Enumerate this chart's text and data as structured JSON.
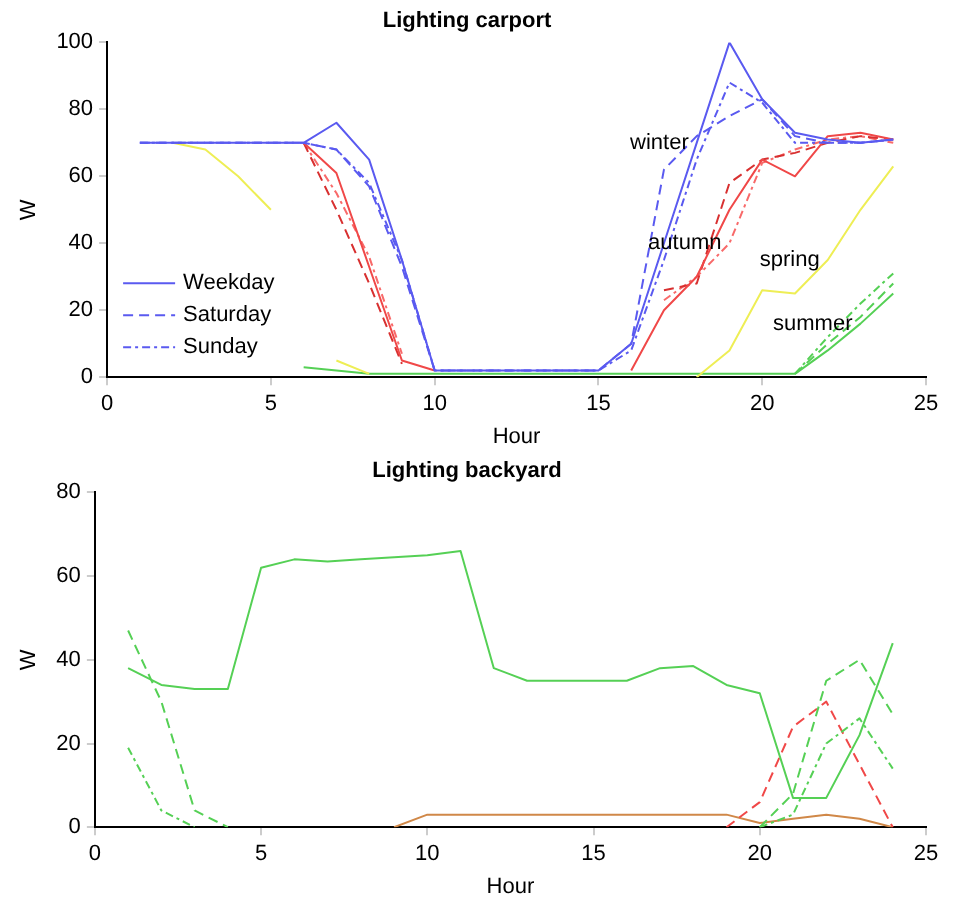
{
  "chart_data": [
    {
      "type": "line",
      "title": "Lighting carport",
      "xlabel": "Hour",
      "ylabel": "W",
      "xlim": [
        0,
        25
      ],
      "xticks": [
        0,
        5,
        10,
        15,
        20,
        25
      ],
      "ylim": [
        0,
        100
      ],
      "yticks": [
        0,
        20,
        40,
        60,
        80,
        100
      ],
      "grid": false,
      "legend": "bottom left",
      "marker": "none",
      "x": [
        1,
        2,
        3,
        4,
        5,
        6,
        7,
        8,
        9,
        10,
        11,
        12,
        13,
        14,
        15,
        16,
        17,
        18,
        19,
        20,
        21,
        22,
        23,
        24
      ],
      "annotations": [
        {
          "text": "winter",
          "x": 18,
          "y": 70
        },
        {
          "text": "autumn",
          "x": 19,
          "y": 40
        },
        {
          "text": "spring",
          "x": 22,
          "y": 35
        },
        {
          "text": "summer",
          "x": 23,
          "y": 16
        }
      ],
      "series": [
        {
          "name": "Weekday",
          "color": "#5a5af0",
          "line_style": "solid",
          "values": [
            70,
            70,
            70,
            70,
            70,
            70,
            76,
            65,
            35,
            2,
            2,
            2,
            2,
            2,
            2,
            10,
            40,
            70,
            100,
            83,
            73,
            71,
            70,
            71
          ]
        },
        {
          "name": "Saturday",
          "color": "#5a5af0",
          "line_style": "dashed",
          "values": [
            70,
            70,
            70,
            70,
            70,
            70,
            68,
            57,
            33,
            2,
            2,
            2,
            2,
            2,
            2,
            10,
            62,
            72,
            78,
            83,
            72,
            70,
            70,
            71
          ]
        },
        {
          "name": "Sunday",
          "color": "#5a5af0",
          "line_style": "dotted",
          "values": [
            70,
            70,
            70,
            70,
            70,
            70,
            68,
            58,
            35,
            2,
            2,
            2,
            2,
            2,
            2,
            8,
            35,
            65,
            88,
            82,
            70,
            70,
            70,
            71
          ]
        },
        {
          "color": "#f04848",
          "line_style": "solid",
          "values": [
            null,
            null,
            null,
            null,
            null,
            70,
            61,
            33,
            5,
            2,
            null,
            null,
            null,
            null,
            null,
            2,
            20,
            30,
            50,
            65,
            60,
            72,
            73,
            71
          ]
        },
        {
          "color": "#d83030",
          "line_style": "dashed",
          "x": [
            6,
            7,
            8,
            9
          ],
          "values": [
            70,
            50,
            28,
            4
          ]
        },
        {
          "color": "#d83030",
          "line_style": "dashed",
          "x": [
            17,
            18,
            19,
            20,
            21,
            22,
            23,
            24
          ],
          "values": [
            26,
            28,
            58,
            65,
            67,
            70,
            72,
            71
          ]
        },
        {
          "color": "#f86a6a",
          "line_style": "dotted",
          "x": [
            6,
            7,
            8,
            9
          ],
          "values": [
            70,
            55,
            36,
            7
          ]
        },
        {
          "color": "#f86a6a",
          "line_style": "dotted",
          "x": [
            17,
            18,
            19,
            20,
            21,
            22,
            23,
            24
          ],
          "values": [
            23,
            30,
            40,
            64,
            68,
            71,
            72,
            70
          ]
        },
        {
          "color": "#eeee55",
          "line_style": "solid",
          "values": [
            null,
            70,
            68,
            60,
            50,
            null,
            5,
            1,
            null,
            null,
            null,
            null,
            null,
            null,
            null,
            null,
            null,
            0,
            8,
            26,
            25,
            35,
            50,
            63
          ]
        },
        {
          "color": "#55d055",
          "line_style": "solid",
          "values": [
            null,
            null,
            null,
            null,
            null,
            3,
            2,
            1,
            1,
            1,
            1,
            1,
            1,
            1,
            1,
            1,
            1,
            1,
            1,
            1,
            1,
            8,
            16,
            25
          ]
        },
        {
          "color": "#55d055",
          "line_style": "dashed",
          "values": [
            null,
            null,
            null,
            null,
            null,
            null,
            null,
            null,
            null,
            null,
            null,
            null,
            null,
            null,
            null,
            null,
            null,
            null,
            null,
            null,
            1,
            10,
            18,
            28
          ]
        },
        {
          "color": "#55d055",
          "line_style": "dotted",
          "values": [
            null,
            null,
            null,
            null,
            null,
            null,
            null,
            null,
            null,
            null,
            null,
            null,
            null,
            null,
            null,
            null,
            null,
            null,
            null,
            null,
            1,
            12,
            22,
            31
          ]
        }
      ]
    },
    {
      "type": "line",
      "title": "Lighting backyard",
      "xlabel": "Hour",
      "ylabel": "W",
      "xlim": [
        0,
        25
      ],
      "xticks": [
        0,
        5,
        10,
        15,
        20,
        25
      ],
      "ylim": [
        0,
        80
      ],
      "yticks": [
        0,
        20,
        40,
        60,
        80
      ],
      "grid": false,
      "marker": "none",
      "x": [
        1,
        2,
        3,
        4,
        5,
        6,
        7,
        8,
        9,
        10,
        11,
        12,
        13,
        14,
        15,
        16,
        17,
        18,
        19,
        20,
        21,
        22,
        23,
        24
      ],
      "series": [
        {
          "color": "#55d055",
          "line_style": "solid",
          "values": [
            38,
            34,
            33,
            33,
            62,
            64,
            63.5,
            64,
            64.5,
            65,
            66,
            38,
            35,
            35,
            35,
            35,
            38,
            38.5,
            34,
            32,
            7,
            7,
            22,
            44
          ]
        },
        {
          "color": "#55d055",
          "line_style": "dashed",
          "values": [
            47,
            30,
            4,
            0,
            null,
            null,
            null,
            null,
            null,
            null,
            null,
            null,
            null,
            null,
            null,
            null,
            null,
            null,
            null,
            0,
            8,
            35,
            40,
            27
          ]
        },
        {
          "color": "#55d055",
          "line_style": "dotted",
          "values": [
            19,
            4,
            0,
            null,
            null,
            null,
            null,
            null,
            null,
            null,
            null,
            null,
            null,
            null,
            null,
            null,
            null,
            null,
            null,
            0,
            3,
            20,
            26,
            14
          ]
        },
        {
          "color": "#f04848",
          "line_style": "dashed",
          "values": [
            null,
            null,
            null,
            null,
            null,
            null,
            null,
            null,
            null,
            null,
            null,
            null,
            null,
            null,
            null,
            null,
            null,
            null,
            0,
            6,
            24,
            30,
            15,
            0
          ]
        },
        {
          "color": "#d08848",
          "line_style": "solid",
          "values": [
            null,
            null,
            null,
            null,
            null,
            null,
            null,
            null,
            0,
            3,
            3,
            3,
            3,
            3,
            3,
            3,
            3,
            3,
            3,
            1,
            2,
            3,
            2,
            0
          ]
        }
      ]
    }
  ]
}
